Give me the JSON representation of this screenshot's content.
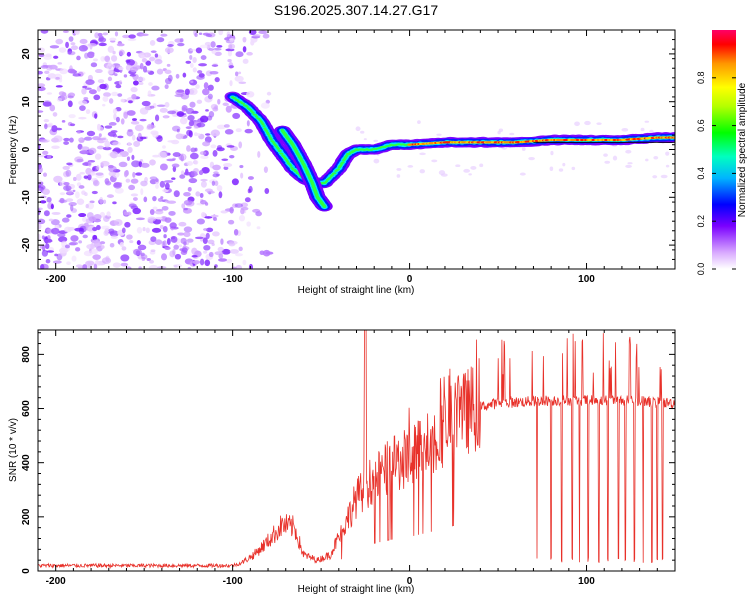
{
  "title": "S196.2025.307.14.27.G17",
  "chart_data": [
    {
      "type": "heatmap",
      "xlabel": "Height of straight line (km)",
      "ylabel": "Frequency (Hz)",
      "xlim": [
        -210,
        150
      ],
      "ylim": [
        -25,
        25
      ],
      "xticks": [
        -200,
        -100,
        0,
        100
      ],
      "yticks": [
        -20,
        -10,
        0,
        10,
        20
      ],
      "colorbar": {
        "label": "Normalized spectral amplitude",
        "range": [
          0,
          1
        ],
        "ticks": [
          "0.0",
          "0.2",
          "0.4",
          "0.6",
          "0.8"
        ],
        "tick_values": [
          0,
          0.2,
          0.4,
          0.6,
          0.8
        ]
      },
      "ridge": [
        {
          "x": -100,
          "y": 11
        },
        {
          "x": -92,
          "y": 9
        },
        {
          "x": -84,
          "y": 6
        },
        {
          "x": -78,
          "y": 2
        },
        {
          "x": -72,
          "y": -1
        },
        {
          "x": -66,
          "y": -4
        },
        {
          "x": -60,
          "y": -6
        },
        {
          "x": -54,
          "y": -7
        },
        {
          "x": -48,
          "y": -7
        },
        {
          "x": -40,
          "y": -4
        },
        {
          "x": -35,
          "y": -1
        },
        {
          "x": -30,
          "y": 0
        },
        {
          "x": -20,
          "y": 0
        },
        {
          "x": -10,
          "y": 1
        },
        {
          "x": 0,
          "y": 1
        },
        {
          "x": 20,
          "y": 1.5
        },
        {
          "x": 40,
          "y": 1.5
        },
        {
          "x": 60,
          "y": 1.5
        },
        {
          "x": 80,
          "y": 2
        },
        {
          "x": 100,
          "y": 2
        },
        {
          "x": 120,
          "y": 2
        },
        {
          "x": 140,
          "y": 2.5
        },
        {
          "x": 150,
          "y": 2.5
        }
      ],
      "ridge_branch": [
        {
          "x": -72,
          "y": 4
        },
        {
          "x": -66,
          "y": 1
        },
        {
          "x": -60,
          "y": -3
        },
        {
          "x": -55,
          "y": -7
        },
        {
          "x": -52,
          "y": -10
        },
        {
          "x": -48,
          "y": -12
        }
      ],
      "noise_region": {
        "x_from": -210,
        "x_to": -90
      }
    },
    {
      "type": "line",
      "xlabel": "Height of straight line (km)",
      "ylabel": "SNR (10 * v/v)",
      "xlim": [
        -210,
        150
      ],
      "ylim": [
        0,
        890
      ],
      "xticks": [
        -200,
        -100,
        0,
        100
      ],
      "yticks": [
        0,
        200,
        400,
        600,
        800
      ],
      "color": "#e8312a",
      "series": [
        {
          "name": "SNR",
          "envelope": [
            {
              "x": -210,
              "y": 20
            },
            {
              "x": -100,
              "y": 20
            },
            {
              "x": -95,
              "y": 30
            },
            {
              "x": -88,
              "y": 60
            },
            {
              "x": -80,
              "y": 110
            },
            {
              "x": -72,
              "y": 170
            },
            {
              "x": -65,
              "y": 160
            },
            {
              "x": -60,
              "y": 60
            },
            {
              "x": -52,
              "y": 40
            },
            {
              "x": -45,
              "y": 60
            },
            {
              "x": -38,
              "y": 150
            },
            {
              "x": -30,
              "y": 270
            },
            {
              "x": -22,
              "y": 330
            },
            {
              "x": -12,
              "y": 380
            },
            {
              "x": 0,
              "y": 420
            },
            {
              "x": 10,
              "y": 470
            },
            {
              "x": 22,
              "y": 540
            },
            {
              "x": 35,
              "y": 600
            },
            {
              "x": 50,
              "y": 620
            },
            {
              "x": 80,
              "y": 630
            },
            {
              "x": 120,
              "y": 630
            },
            {
              "x": 150,
              "y": 620
            }
          ],
          "dropouts_x": [
            72,
            80,
            86,
            92,
            96,
            101,
            107,
            112,
            118,
            122,
            127,
            132,
            137,
            140,
            143
          ]
        }
      ]
    }
  ]
}
